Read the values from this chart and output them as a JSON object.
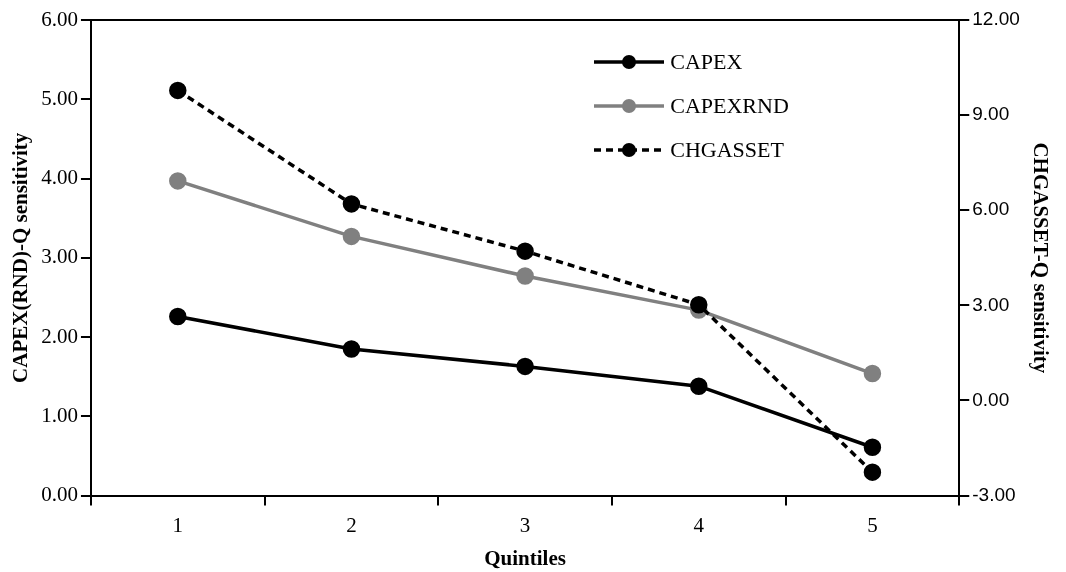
{
  "chart_data": {
    "type": "line",
    "xlabel": "Quintiles",
    "ylabel": "CAPEX(RND)-Q sensitivity",
    "y2label": "CHGASSET-Q sensitivity",
    "categories": [
      "1",
      "2",
      "3",
      "4",
      "5"
    ],
    "series": [
      {
        "name": "CAPEX",
        "color": "#000000",
        "values": [
          2.26,
          1.85,
          1.63,
          1.38,
          0.61
        ]
      },
      {
        "name": "CAPEXRND",
        "color": "#808080",
        "values": [
          3.97,
          3.27,
          2.77,
          2.34,
          1.54
        ]
      },
      {
        "name": "CHGASSET",
        "color": "#000000",
        "axis": "y2",
        "line_style": "dashed",
        "values": [
          9.78,
          6.2,
          4.71,
          3.02,
          -2.26
        ]
      }
    ],
    "ylim": [
      0,
      6
    ],
    "yticks": [
      {
        "value": 0,
        "label": "0.00"
      },
      {
        "value": 1,
        "label": "1.00"
      },
      {
        "value": 2,
        "label": "2.00"
      },
      {
        "value": 3,
        "label": "3.00"
      },
      {
        "value": 4,
        "label": "4.00"
      },
      {
        "value": 5,
        "label": "5.00"
      },
      {
        "value": 6,
        "label": "6.00"
      }
    ],
    "y2lim": [
      -3,
      12
    ],
    "y2ticks": [
      {
        "value": -3,
        "label": "-3.00"
      },
      {
        "value": 0,
        "label": "0.00"
      },
      {
        "value": 3,
        "label": "3.00"
      },
      {
        "value": 6,
        "label": "6.00"
      },
      {
        "value": 9,
        "label": "9.00"
      },
      {
        "value": 12,
        "label": "12.00"
      }
    ],
    "marker": "circle",
    "line_style": "solid",
    "grid": false,
    "legend": "top right"
  }
}
